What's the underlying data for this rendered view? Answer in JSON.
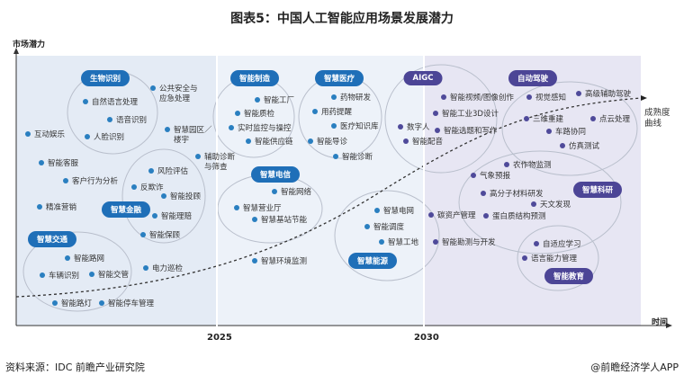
{
  "title": "图表5：中国人工智能应用场景发展潜力",
  "y_axis_label": "市场潜力",
  "x_axis_label": "时间",
  "x_ticks": [
    "2025",
    "2030"
  ],
  "curve_label": [
    "成熟度",
    "曲线"
  ],
  "colors": {
    "stage1": "#e4ebf5",
    "stage2": "#edf2f9",
    "stage3": "#e7e6f3",
    "blue": "#1f6fb8",
    "purple": "#4c4596"
  },
  "categories": [
    {
      "label": "生物识别",
      "color": "blue"
    },
    {
      "label": "智慧金融",
      "color": "blue"
    },
    {
      "label": "智慧交通",
      "color": "blue"
    },
    {
      "label": "智能制造",
      "color": "blue"
    },
    {
      "label": "智慧医疗",
      "color": "blue"
    },
    {
      "label": "智慧电信",
      "color": "blue"
    },
    {
      "label": "智慧能源",
      "color": "blue"
    },
    {
      "label": "AIGC",
      "color": "purple"
    },
    {
      "label": "自动驾驶",
      "color": "purple"
    },
    {
      "label": "智慧科研",
      "color": "purple"
    },
    {
      "label": "智能教育",
      "color": "purple"
    }
  ],
  "items": [
    [
      "自然语言处理"
    ],
    [
      "语音识别"
    ],
    [
      "人脸识别"
    ],
    [
      "公共安全与",
      "应急处理"
    ],
    [
      "互动娱乐"
    ],
    [
      "智慧园区／",
      "楼宇"
    ],
    [
      "辅助诊断",
      "与筛查"
    ],
    [
      "智能客服"
    ],
    [
      "风险评估"
    ],
    [
      "客户行为分析"
    ],
    [
      "反欺诈"
    ],
    [
      "智能投顾"
    ],
    [
      "精准营销"
    ],
    [
      "智能理赔"
    ],
    [
      "智能保顾"
    ],
    [
      "智能路网"
    ],
    [
      "电力巡检"
    ],
    [
      "车辆识别"
    ],
    [
      "智能交管"
    ],
    [
      "智能路灯"
    ],
    [
      "智能停车管理"
    ],
    [
      "智能工厂"
    ],
    [
      "药物研发"
    ],
    [
      "智能质检"
    ],
    [
      "用药提醒"
    ],
    [
      "实时监控与操控"
    ],
    [
      "医疗知识库"
    ],
    [
      "智能供应链"
    ],
    [
      "智能导诊"
    ],
    [
      "智能诊断"
    ],
    [
      "智能网络"
    ],
    [
      "智慧营业厅"
    ],
    [
      "智慧基站节能"
    ],
    [
      "智慧电网"
    ],
    [
      "智能调度"
    ],
    [
      "智慧工地"
    ],
    [
      "智慧环境监测"
    ],
    [
      "数字人"
    ],
    [
      "智能配音"
    ],
    [
      "智能视频/图像创作"
    ],
    [
      "智能工业3D设计"
    ],
    [
      "智能选题和写作"
    ],
    [
      "视觉感知"
    ],
    [
      "高级辅助驾驶"
    ],
    [
      "三维重建"
    ],
    [
      "点云处理"
    ],
    [
      "车路协同"
    ],
    [
      "仿真测试"
    ],
    [
      "农作物监测"
    ],
    [
      "气象预报"
    ],
    [
      "高分子材料研发"
    ],
    [
      "天文发现"
    ],
    [
      "碳资产管理"
    ],
    [
      "蛋白质结构预测"
    ],
    [
      "智能勘测与开发"
    ],
    [
      "自适应学习"
    ],
    [
      "语言能力管理"
    ]
  ],
  "footer": {
    "source": "资料来源：IDC 前瞻产业研究院",
    "credit": "@前瞻经济学人APP"
  }
}
